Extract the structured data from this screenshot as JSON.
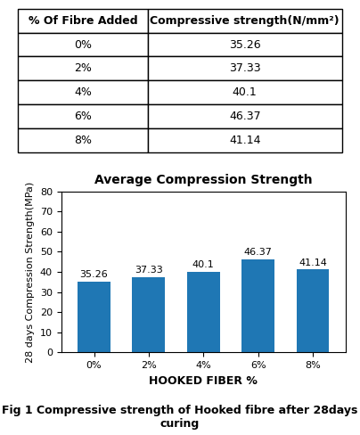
{
  "chart_data": {
    "type": "bar",
    "title": "Average Compression Strength",
    "xlabel": "HOOKED FIBER %",
    "ylabel": "28 days Compression Strength(MPa)",
    "categories": [
      "0%",
      "2%",
      "4%",
      "6%",
      "8%"
    ],
    "values": [
      35.26,
      37.33,
      40.1,
      46.37,
      41.14
    ],
    "ylim": [
      0,
      80
    ],
    "yticks": [
      0,
      10,
      20,
      30,
      40,
      50,
      60,
      70,
      80
    ],
    "grid": false,
    "data_labels": true
  },
  "table": {
    "headers": [
      "% Of Fibre Added",
      "Compressive strength(N/mm²)"
    ],
    "rows": [
      [
        "0%",
        "35.26"
      ],
      [
        "2%",
        "37.33"
      ],
      [
        "4%",
        "40.1"
      ],
      [
        "6%",
        "46.37"
      ],
      [
        "8%",
        "41.14"
      ]
    ]
  },
  "caption": "Fig 1 Compressive strength of Hooked fibre after 28days curing"
}
